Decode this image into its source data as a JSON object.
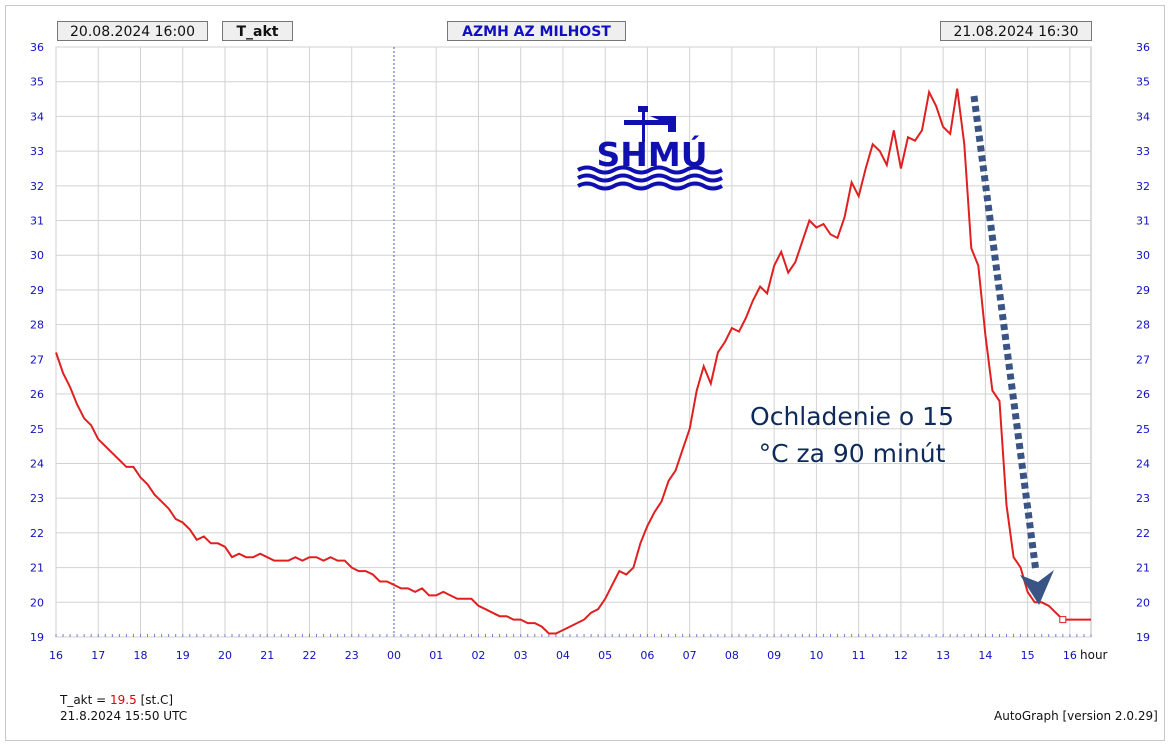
{
  "header": {
    "start": "20.08.2024 16:00",
    "variable": "T_akt",
    "station": "AZMH AZ MILHOST",
    "end": "21.08.2024 16:30"
  },
  "footer": {
    "label": "T_akt = ",
    "value": "19.5",
    "unit": "[st.C]",
    "timestamp": "21.8.2024 15:50 UTC",
    "version": "AutoGraph [version 2.0.29]"
  },
  "logo": {
    "text": "SHMÚ"
  },
  "annotation": {
    "line1": "Ochladenie o 15",
    "line2": "°C za 90 minút"
  },
  "colors": {
    "line": "#e02020",
    "axis_text": "#1010c0",
    "annotation": "#0d2a5a",
    "arrow": "#3a5585"
  },
  "chart_data": {
    "type": "line",
    "xlabel": "hour",
    "ylabel": "",
    "x_ticks": [
      "16",
      "17",
      "18",
      "19",
      "20",
      "21",
      "22",
      "23",
      "00",
      "01",
      "02",
      "03",
      "04",
      "05",
      "06",
      "07",
      "08",
      "09",
      "10",
      "11",
      "12",
      "13",
      "14",
      "15",
      "16"
    ],
    "xlim": [
      16,
      40.5
    ],
    "ylim": [
      19,
      36
    ],
    "y_ticks": [
      19,
      20,
      21,
      22,
      23,
      24,
      25,
      26,
      27,
      28,
      29,
      30,
      31,
      32,
      33,
      34,
      35,
      36
    ],
    "grid": true,
    "series": [
      {
        "name": "T_akt",
        "x": [
          16,
          16.167,
          16.333,
          16.5,
          16.667,
          16.833,
          17,
          17.167,
          17.333,
          17.5,
          17.667,
          17.833,
          18,
          18.167,
          18.333,
          18.5,
          18.667,
          18.833,
          19,
          19.167,
          19.333,
          19.5,
          19.667,
          19.833,
          20,
          20.167,
          20.333,
          20.5,
          20.667,
          20.833,
          21,
          21.167,
          21.333,
          21.5,
          21.667,
          21.833,
          22,
          22.167,
          22.333,
          22.5,
          22.667,
          22.833,
          23,
          23.167,
          23.333,
          23.5,
          23.667,
          23.833,
          24,
          24.167,
          24.333,
          24.5,
          24.667,
          24.833,
          25,
          25.167,
          25.333,
          25.5,
          25.667,
          25.833,
          26,
          26.167,
          26.333,
          26.5,
          26.667,
          26.833,
          27,
          27.167,
          27.333,
          27.5,
          27.667,
          27.833,
          28,
          28.167,
          28.333,
          28.5,
          28.667,
          28.833,
          29,
          29.167,
          29.333,
          29.5,
          29.667,
          29.833,
          30,
          30.167,
          30.333,
          30.5,
          30.667,
          30.833,
          31,
          31.167,
          31.333,
          31.5,
          31.667,
          31.833,
          32,
          32.167,
          32.333,
          32.5,
          32.667,
          32.833,
          33,
          33.167,
          33.333,
          33.5,
          33.667,
          33.833,
          34,
          34.167,
          34.333,
          34.5,
          34.667,
          34.833,
          35,
          35.167,
          35.333,
          35.5,
          35.667,
          35.833,
          36,
          36.167,
          36.333,
          36.5,
          36.667,
          36.833,
          37,
          37.167,
          37.333,
          37.5,
          37.667,
          37.833,
          38,
          38.167,
          38.333,
          38.5,
          38.667,
          38.833,
          39,
          39.167,
          39.333,
          39.5,
          39.667,
          39.833,
          40,
          40.167,
          40.333,
          40.5
        ],
        "y": [
          27.2,
          26.6,
          26.2,
          25.7,
          25.3,
          25.1,
          24.7,
          24.5,
          24.3,
          24.1,
          23.9,
          23.9,
          23.6,
          23.4,
          23.1,
          22.9,
          22.7,
          22.4,
          22.3,
          22.1,
          21.8,
          21.9,
          21.7,
          21.7,
          21.6,
          21.3,
          21.4,
          21.3,
          21.3,
          21.4,
          21.3,
          21.2,
          21.2,
          21.2,
          21.3,
          21.2,
          21.3,
          21.3,
          21.2,
          21.3,
          21.2,
          21.2,
          21.0,
          20.9,
          20.9,
          20.8,
          20.6,
          20.6,
          20.5,
          20.4,
          20.4,
          20.3,
          20.4,
          20.2,
          20.2,
          20.3,
          20.2,
          20.1,
          20.1,
          20.1,
          19.9,
          19.8,
          19.7,
          19.6,
          19.6,
          19.5,
          19.5,
          19.4,
          19.4,
          19.3,
          19.1,
          19.1,
          19.2,
          19.3,
          19.4,
          19.5,
          19.7,
          19.8,
          20.1,
          20.5,
          20.9,
          20.8,
          21.0,
          21.7,
          22.2,
          22.6,
          22.9,
          23.5,
          23.8,
          24.4,
          25.0,
          26.1,
          26.8,
          26.3,
          27.2,
          27.5,
          27.9,
          27.8,
          28.2,
          28.7,
          29.1,
          28.9,
          29.7,
          30.1,
          29.5,
          29.8,
          30.4,
          31.0,
          30.8,
          30.9,
          30.6,
          30.5,
          31.1,
          32.1,
          31.7,
          32.5,
          33.2,
          33.0,
          32.6,
          33.6,
          32.5,
          33.4,
          33.3,
          33.6,
          34.7,
          34.3,
          33.7,
          33.5,
          34.8,
          33.2,
          30.2,
          29.7,
          27.7,
          26.1,
          25.8,
          22.8,
          21.3,
          21.0,
          20.3,
          20.0,
          20.0,
          19.9,
          19.7,
          19.5,
          19.5,
          19.5,
          19.5,
          19.5
        ]
      }
    ]
  }
}
